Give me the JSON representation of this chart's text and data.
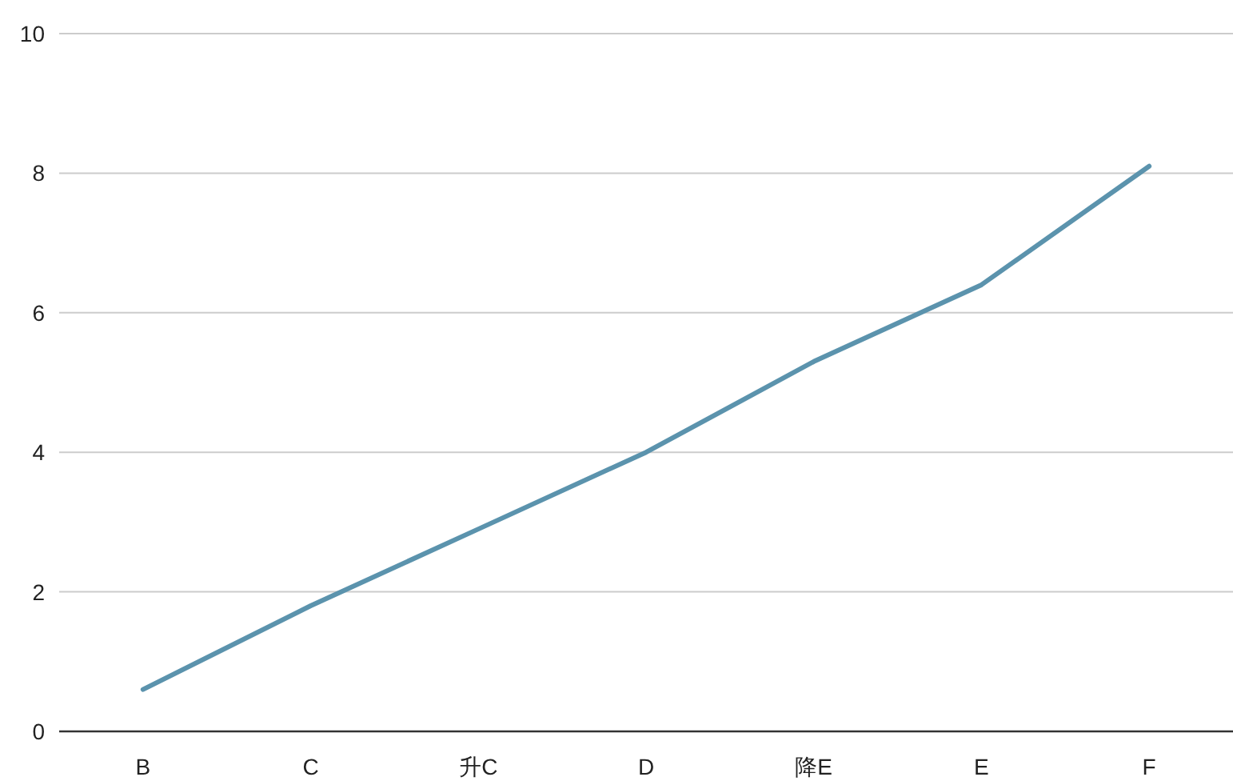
{
  "chart_data": {
    "type": "line",
    "categories": [
      "B",
      "C",
      "升C",
      "D",
      "降E",
      "E",
      "F"
    ],
    "series": [
      {
        "color": "#5b93ad",
        "values": [
          0.6,
          1.8,
          2.9,
          4.0,
          5.3,
          6.4,
          8.1
        ]
      }
    ],
    "ylim": [
      0,
      10
    ],
    "yticks": [
      0,
      2,
      4,
      6,
      8,
      10
    ],
    "grid": "y"
  }
}
